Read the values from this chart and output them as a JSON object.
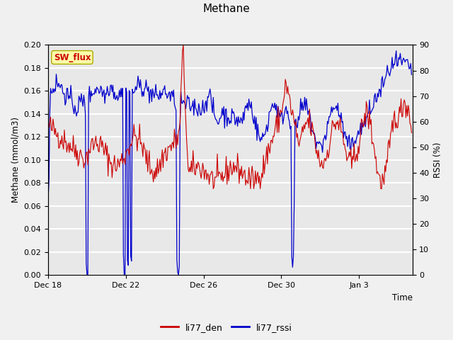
{
  "title": "Methane",
  "xlabel": "Time",
  "ylabel_left": "Methane (mmol/m3)",
  "ylabel_right": "RSSI (%)",
  "legend_label_red": "li77_den",
  "legend_label_blue": "li77_rssi",
  "annotation_text": "SW_flux",
  "ylim_left": [
    0.0,
    0.2
  ],
  "ylim_right": [
    0,
    90
  ],
  "yticks_left": [
    0.0,
    0.02,
    0.04,
    0.06,
    0.08,
    0.1,
    0.12,
    0.14,
    0.16,
    0.18,
    0.2
  ],
  "yticks_right": [
    0,
    10,
    20,
    30,
    40,
    50,
    60,
    70,
    80,
    90
  ],
  "bg_color": "#f0f0f0",
  "plot_bg_color": "#e8e8e8",
  "grid_color": "white",
  "red_color": "#cc0000",
  "blue_color": "#0000cc",
  "annotation_bg": "#ffffaa",
  "annotation_border": "#aaaa00",
  "annotation_text_color": "#cc0000",
  "xtick_labels": [
    "Dec 18",
    "Dec 22",
    "Dec 26",
    "Dec 30",
    "Jan 3"
  ]
}
